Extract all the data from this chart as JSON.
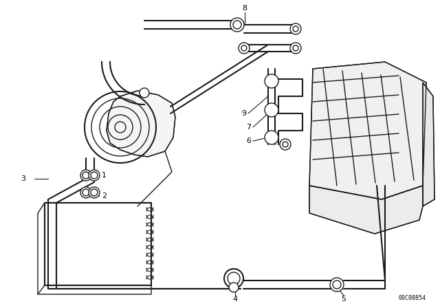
{
  "bg_color": "#ffffff",
  "line_color": "#1a1a1a",
  "label_color": "#000000",
  "part_number": "00C08854",
  "fig_width": 6.4,
  "fig_height": 4.48,
  "dpi": 100
}
